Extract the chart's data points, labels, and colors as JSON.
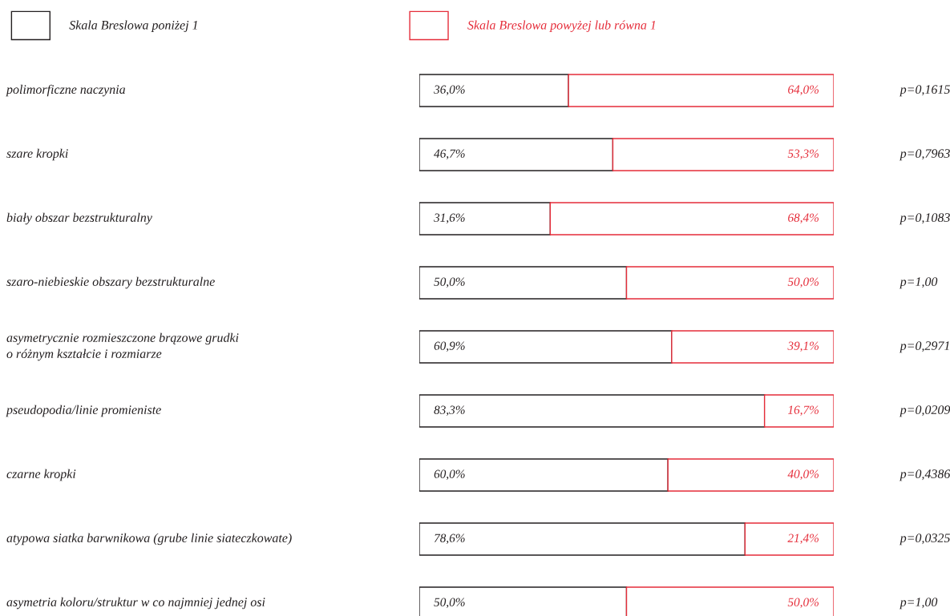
{
  "chart_data": {
    "type": "bar",
    "orientation": "horizontal",
    "stacked": true,
    "categories": [
      "polimorficzne naczynia",
      "szare kropki",
      "biały obszar bezstrukturalny",
      "szaro-niebieskie obszary bezstrukturalne",
      "asymetrycznie rozmieszczone brązowe grudki\no różnym kształcie i rozmiarze",
      "pseudopodia/linie promieniste",
      "czarne kropki",
      "atypowa siatka barwnikowa (grube linie siateczkowate)",
      "asymetria koloru/struktur w co najmniej jednej osi"
    ],
    "series": [
      {
        "name": "Skala Breslowa poniżej 1",
        "color": "#231f20",
        "values": [
          36.0,
          46.7,
          31.6,
          50.0,
          60.9,
          83.3,
          60.0,
          78.6,
          50.0
        ],
        "value_labels": [
          "36,0%",
          "46,7%",
          "31,6%",
          "50,0%",
          "60,9%",
          "83,3%",
          "60,0%",
          "78,6%",
          "50,0%"
        ]
      },
      {
        "name": "Skala Breslowa powyżej lub równa 1",
        "color": "#e52d3a",
        "values": [
          64.0,
          53.3,
          68.4,
          50.0,
          39.1,
          16.7,
          40.0,
          21.4,
          50.0
        ],
        "value_labels": [
          "64,0%",
          "53,3%",
          "68,4%",
          "50,0%",
          "39,1%",
          "16,7%",
          "40,0%",
          "21,4%",
          "50,0%"
        ]
      }
    ],
    "xlim": [
      0,
      100
    ],
    "tick_labels": "y",
    "legend": "top",
    "annotations": [
      "p=0,1615",
      "p=0,7963",
      "p=0,1083",
      "p=1,00",
      "p=0,2971",
      "p=0,0209",
      "p=0,4386",
      "p=0,0325",
      "p=1,00"
    ]
  }
}
